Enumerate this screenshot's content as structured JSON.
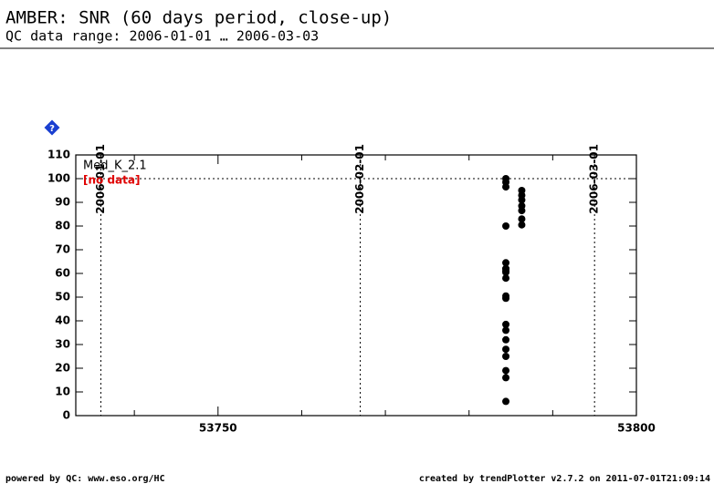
{
  "chart_data": {
    "type": "scatter",
    "title": "AMBER: SNR (60 days period, close-up)",
    "subtitle": "QC data range: 2006-01-01 … 2006-03-03",
    "series": [
      {
        "name": "Med_K_2.1",
        "color": "#000000",
        "x": [
          53784.4,
          53784.4,
          53784.4,
          53784.4,
          53784.4,
          53784.4,
          53784.4,
          53784.4,
          53784.4,
          53784.4,
          53784.4,
          53784.4,
          53784.4,
          53784.4,
          53784.4,
          53784.4,
          53784.4,
          53784.4,
          53784.4,
          53784.4,
          53786.3,
          53786.3,
          53786.3,
          53786.3,
          53786.3,
          53786.3,
          53786.3
        ],
        "values": [
          100,
          98.5,
          96.5,
          80,
          64.5,
          62,
          61,
          60.5,
          58,
          50.5,
          49.5,
          38.5,
          36,
          32,
          28,
          25,
          19,
          16,
          6,
          62,
          95,
          93,
          91,
          88.5,
          86.5,
          83,
          80.5
        ]
      }
    ],
    "annotation": "[no data]",
    "hline": 100,
    "vlines": [
      {
        "x": 53736,
        "label": "2006-01-01"
      },
      {
        "x": 53767,
        "label": "2006-02-01"
      },
      {
        "x": 53795,
        "label": "2006-03-01"
      }
    ],
    "xlim": [
      53733,
      53800
    ],
    "xticks": [
      53750,
      53800
    ],
    "xminorticks": [
      53740,
      53760,
      53770,
      53780,
      53790
    ],
    "ylim": [
      0,
      110
    ],
    "yticks": [
      0,
      10,
      20,
      30,
      40,
      50,
      60,
      70,
      80,
      90,
      100,
      110
    ],
    "footer_left": "powered by QC: www.eso.org/HC",
    "footer_right": "created by trendPlotter v2.7.2 on 2011-07-01T21:09:14"
  }
}
